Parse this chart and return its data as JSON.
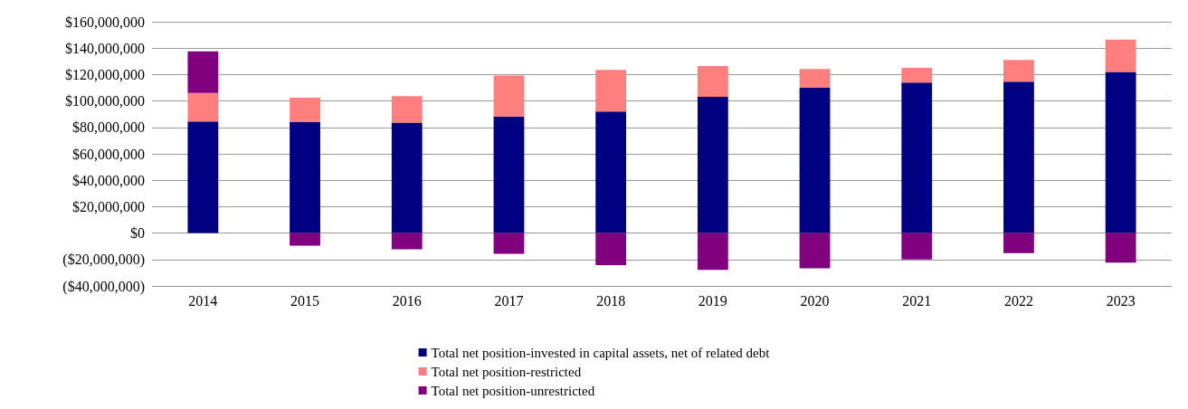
{
  "chart_data": {
    "type": "bar",
    "stacked": true,
    "categories": [
      "2014",
      "2015",
      "2016",
      "2017",
      "2018",
      "2019",
      "2020",
      "2021",
      "2022",
      "2023"
    ],
    "series": [
      {
        "name": "Total net position-invested in capital assets, net of related debt",
        "color": "#000080",
        "values": [
          84500000,
          84000000,
          83600000,
          88300000,
          92000000,
          103200000,
          110000000,
          114000000,
          114700000,
          122000000
        ]
      },
      {
        "name": "Total net position-restricted",
        "color": "#ff7f7f",
        "values": [
          21500000,
          18500000,
          20000000,
          31000000,
          31500000,
          23300000,
          14200000,
          11000000,
          16300000,
          24500000
        ]
      },
      {
        "name": "Total net position-unrestricted",
        "color": "#800080",
        "values": [
          31500000,
          -9600000,
          -12300000,
          -15600000,
          -24200000,
          -27900000,
          -26700000,
          -19900000,
          -15200000,
          -22400000
        ]
      }
    ],
    "ylim": [
      -40000000,
      160000000
    ],
    "yticks": [
      {
        "value": -40000000,
        "label": "($40,000,000)"
      },
      {
        "value": -20000000,
        "label": "($20,000,000)"
      },
      {
        "value": 0,
        "label": "$0"
      },
      {
        "value": 20000000,
        "label": "$20,000,000"
      },
      {
        "value": 40000000,
        "label": "$40,000,000"
      },
      {
        "value": 60000000,
        "label": "$60,000,000"
      },
      {
        "value": 80000000,
        "label": "$80,000,000"
      },
      {
        "value": 100000000,
        "label": "$100,000,000"
      },
      {
        "value": 120000000,
        "label": "$120,000,000"
      },
      {
        "value": 140000000,
        "label": "$140,000,000"
      },
      {
        "value": 160000000,
        "label": "$160,000,000"
      }
    ],
    "grid": "y",
    "legend": "bottom"
  }
}
